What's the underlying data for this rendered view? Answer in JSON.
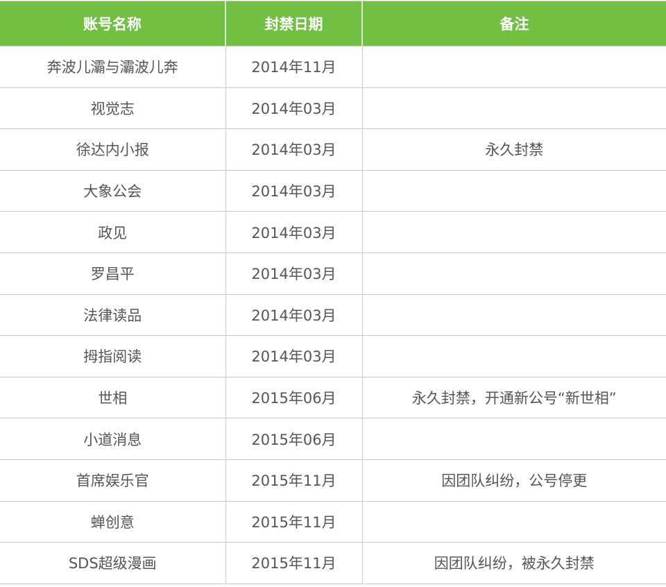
{
  "headers": [
    "账号名称",
    "封禁日期",
    "备注"
  ],
  "colors": {
    "header_bg": "#72bf44",
    "header_text": "#ffffff",
    "cell_text": "#555555",
    "border": "#c8c8c8"
  },
  "rows": [
    {
      "name": "奔波儿灞与灞波儿奔",
      "date": "2014年11月",
      "note": ""
    },
    {
      "name": "视觉志",
      "date": "2014年03月",
      "note": ""
    },
    {
      "name": "徐达内小报",
      "date": "2014年03月",
      "note": "永久封禁"
    },
    {
      "name": "大象公会",
      "date": "2014年03月",
      "note": ""
    },
    {
      "name": "政见",
      "date": "2014年03月",
      "note": ""
    },
    {
      "name": "罗昌平",
      "date": "2014年03月",
      "note": ""
    },
    {
      "name": "法律读品",
      "date": "2014年03月",
      "note": ""
    },
    {
      "name": "拇指阅读",
      "date": "2014年03月",
      "note": ""
    },
    {
      "name": "世相",
      "date": "2015年06月",
      "note": "永久封禁，开通新公号“新世相”"
    },
    {
      "name": "小道消息",
      "date": "2015年06月",
      "note": ""
    },
    {
      "name": "首席娱乐官",
      "date": "2015年11月",
      "note": "因团队纠纷，公号停更"
    },
    {
      "name": "蝉创意",
      "date": "2015年11月",
      "note": ""
    },
    {
      "name": "SDS超级漫画",
      "date": "2015年11月",
      "note": "因团队纠纷，被永久封禁"
    }
  ]
}
